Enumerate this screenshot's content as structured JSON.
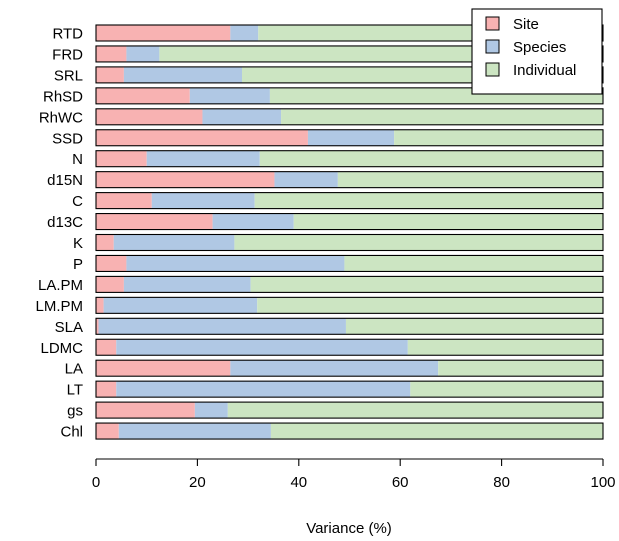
{
  "chart_data": {
    "type": "bar",
    "orientation": "horizontal",
    "stacked": true,
    "categories": [
      "RTD",
      "FRD",
      "SRL",
      "RhSD",
      "RhWC",
      "SSD",
      "N",
      "d15N",
      "C",
      "d13C",
      "K",
      "P",
      "LA.PM",
      "LM.PM",
      "SLA",
      "LDMC",
      "LA",
      "LT",
      "gs",
      "Chl"
    ],
    "series": [
      {
        "name": "Site",
        "values": [
          26.5,
          6,
          5.5,
          18.5,
          21,
          41.8,
          10,
          35.2,
          11,
          23,
          3.5,
          6,
          5.5,
          1.5,
          0.5,
          4,
          26.5,
          4,
          19.5,
          4.5
        ]
      },
      {
        "name": "Species",
        "values": [
          5.5,
          6.5,
          23.3,
          15.8,
          15.5,
          17,
          22.3,
          12.5,
          20.3,
          16,
          23.8,
          43,
          25,
          30.3,
          48.8,
          57.5,
          41,
          58,
          6.5,
          30
        ]
      },
      {
        "name": "Individual",
        "values": [
          68,
          87.5,
          71.2,
          65.7,
          63.5,
          41.2,
          67.7,
          52.3,
          68.7,
          61,
          72.7,
          51,
          69.5,
          68.2,
          50.7,
          38.5,
          32.5,
          38,
          74,
          65.5
        ]
      }
    ],
    "colors": [
      "#f8b2b2",
      "#b0c8e4",
      "#cce5c2"
    ],
    "xlabel": "Variance (%)",
    "ylabel": "",
    "xlim": [
      0,
      100
    ],
    "xticks": [
      "0",
      "20",
      "40",
      "60",
      "80",
      "100"
    ],
    "legend": "top-right",
    "grid": false
  }
}
